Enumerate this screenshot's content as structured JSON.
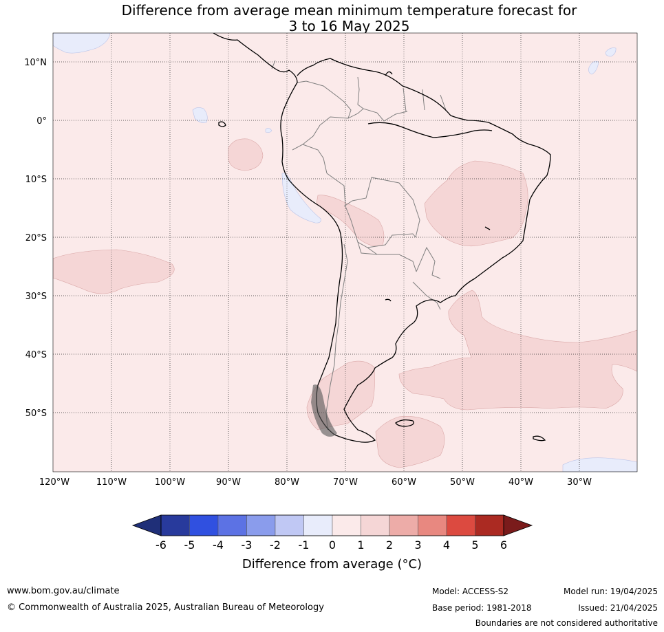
{
  "title": {
    "line1": "Difference from average mean minimum temperature forecast for",
    "line2": "3 to 16 May 2025"
  },
  "map": {
    "lat_labels": [
      "10°N",
      "0°",
      "10°S",
      "20°S",
      "30°S",
      "40°S",
      "50°S"
    ],
    "lon_labels": [
      "120°W",
      "110°W",
      "100°W",
      "90°W",
      "80°W",
      "70°W",
      "60°W",
      "50°W",
      "40°W",
      "30°W"
    ],
    "colors": {
      "band_0_1": "#fbeaea",
      "band_1_2": "#f5d6d6",
      "band_m1_0": "#e8ecfb",
      "coast": "#000000",
      "borders": "#808080"
    }
  },
  "colorbar": {
    "ticks": [
      "-6",
      "-5",
      "-4",
      "-3",
      "-2",
      "-1",
      "0",
      "1",
      "2",
      "3",
      "4",
      "5",
      "6"
    ],
    "colors": [
      "#283a9c",
      "#3050e0",
      "#5c72e4",
      "#8a9cec",
      "#c0c8f4",
      "#e8ecfb",
      "#fbeaea",
      "#f5d6d6",
      "#edaca8",
      "#e88880",
      "#dc4a40",
      "#ab2a22"
    ],
    "low_extend_color": "#1f2f78",
    "high_extend_color": "#7a1b1b",
    "label": "Difference from average ($^\\circ$C)",
    "label_display": "Difference from average (°C)"
  },
  "footer": {
    "website": "www.bom.gov.au/climate",
    "copyright": "© Commonwealth of Australia 2025, Australian Bureau of Meteorology",
    "model": "Model: ACCESS-S2",
    "base_period": "Base period: 1981-2018",
    "model_run": "Model run: 19/04/2025",
    "issued": "Issued: 21/04/2025",
    "disclaimer": "Boundaries are not considered authoritative"
  }
}
